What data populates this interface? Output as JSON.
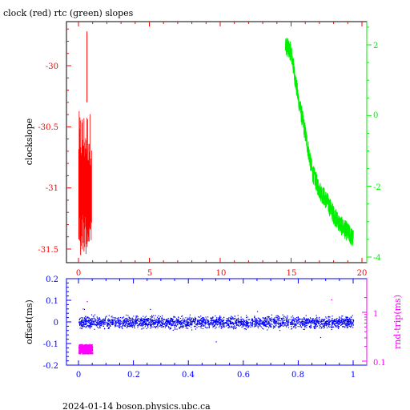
{
  "title": "clock (red) rtc (green) slopes",
  "footer": "2024-01-14 boson.physics.ubc.ca",
  "colors": {
    "red": "#ff0000",
    "green": "#00ee00",
    "blue": "#0000ff",
    "magenta": "#ff00ff",
    "black": "#000000"
  },
  "chart_data": [
    {
      "type": "line",
      "title": "clock (red) rtc (green) slopes",
      "ylabel": "clockslope",
      "xlim": [
        -1,
        20.5
      ],
      "ylim": [
        -31.62,
        -29.55
      ],
      "y2lim": [
        -4.1,
        2.6
      ],
      "xticks": [
        "0",
        "5",
        "10",
        "15",
        "20"
      ],
      "yticks": [
        "-30",
        "-30.5",
        "-31",
        "-31.5"
      ],
      "y2ticks": [
        "2",
        "0",
        "-2",
        "-4"
      ],
      "series": [
        {
          "color": "#ff0000",
          "axis": "left",
          "x": [
            0.02,
            0.95
          ],
          "y_center": -31.0,
          "y_range": [
            -31.55,
            -29.72
          ]
        },
        {
          "color": "#00ee00",
          "axis": "right",
          "x": [
            14.6,
            15.0,
            15.5,
            16.0,
            16.5,
            17.0,
            17.5,
            18.0,
            18.5,
            19.0,
            19.4
          ],
          "y": [
            2.0,
            1.8,
            0.5,
            -0.5,
            -1.6,
            -2.1,
            -2.4,
            -2.8,
            -3.1,
            -3.3,
            -3.5
          ]
        }
      ]
    },
    {
      "type": "scatter",
      "ylabel": "offset(ms)",
      "y2label": "rnd-trip(ms)",
      "xlim": [
        -0.05,
        1.05
      ],
      "ylim": [
        -0.2,
        0.2
      ],
      "y2lim_log": [
        0.08,
        2.0
      ],
      "y2scale": "log",
      "xticks": [
        "0",
        "0.2",
        "0.4",
        "0.6",
        "0.8",
        "1"
      ],
      "yticks": [
        "0.2",
        "0.1",
        "0",
        "-0.1",
        "-0.2"
      ],
      "y2ticks": [
        "1",
        "0.1"
      ],
      "series": [
        {
          "color": "#0000ff",
          "axis": "left",
          "x": [
            0,
            1
          ],
          "y_center": 0.0,
          "y_spread": 0.03
        },
        {
          "color": "#ff00ff",
          "axis": "right",
          "x": [
            0.0,
            0.05
          ],
          "y_center": 0.18,
          "y_spread_factor": 1.25
        }
      ]
    }
  ]
}
